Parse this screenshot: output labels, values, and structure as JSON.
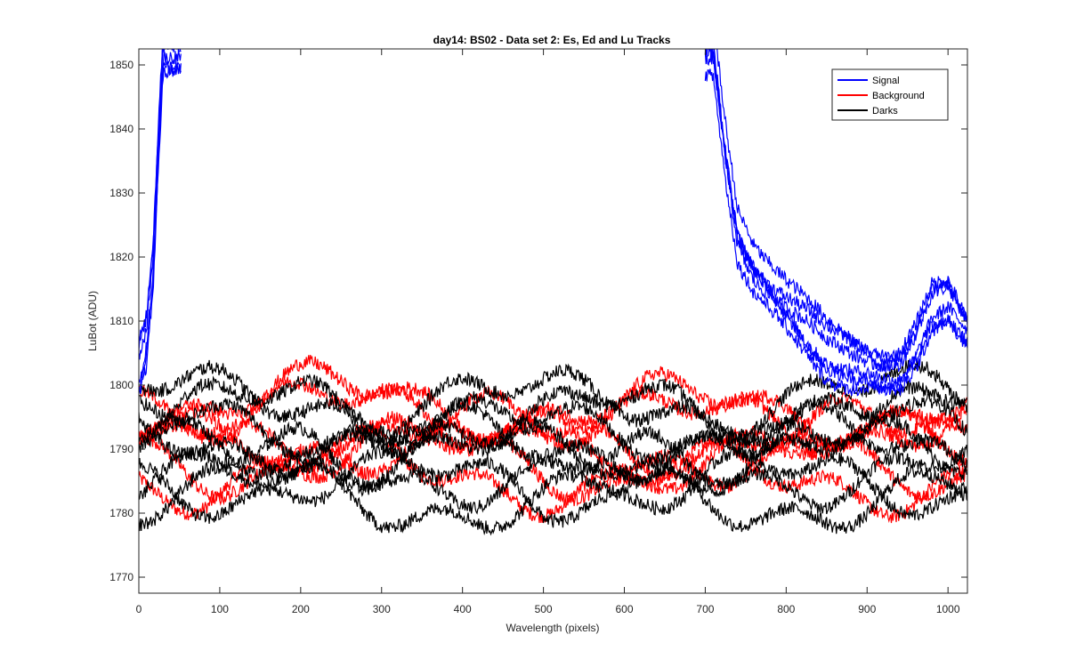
{
  "chart_data": {
    "type": "line",
    "title": "day14: BS02 - Data set 2: Es, Ed and Lu Tracks",
    "xlabel": "Wavelength (pixels)",
    "ylabel": "LuBot (ADU)",
    "xlim": [
      0,
      1024
    ],
    "ylim": [
      1767.5,
      1852.5
    ],
    "xticks": [
      0,
      100,
      200,
      300,
      400,
      500,
      600,
      700,
      800,
      900,
      1000
    ],
    "yticks": [
      1770,
      1780,
      1790,
      1800,
      1810,
      1820,
      1830,
      1840,
      1850
    ],
    "legend_position": "top-right",
    "grid": false,
    "series": [
      {
        "name": "Signal",
        "color": "#0000ff",
        "traces": 6,
        "x": [
          0,
          10,
          18,
          25,
          30,
          35,
          40,
          45,
          50,
          700,
          710,
          725,
          740,
          760,
          790,
          820,
          850,
          880,
          900,
          920,
          940,
          960,
          980,
          1000,
          1024
        ],
        "y": [
          1803,
          1808,
          1820,
          1840,
          1852,
          1852,
          1852,
          1852,
          1852,
          1852,
          1852,
          1836,
          1823,
          1818,
          1814,
          1810,
          1806,
          1804,
          1803,
          1802,
          1802,
          1806,
          1812,
          1813,
          1808
        ]
      },
      {
        "name": "Background",
        "color": "#ff0000",
        "traces": 6,
        "x": [
          0,
          100,
          200,
          300,
          400,
          500,
          600,
          700,
          800,
          900,
          1024
        ],
        "y": [
          1792,
          1791,
          1792,
          1793,
          1792,
          1791,
          1790,
          1791,
          1791,
          1791,
          1791
        ]
      },
      {
        "name": "Darks",
        "color": "#000000",
        "traces": 8,
        "x": [
          0,
          100,
          200,
          300,
          400,
          500,
          600,
          700,
          800,
          900,
          1024
        ],
        "y": [
          1790,
          1790,
          1791,
          1790,
          1790,
          1789,
          1790,
          1790,
          1790,
          1790,
          1790
        ]
      }
    ]
  }
}
